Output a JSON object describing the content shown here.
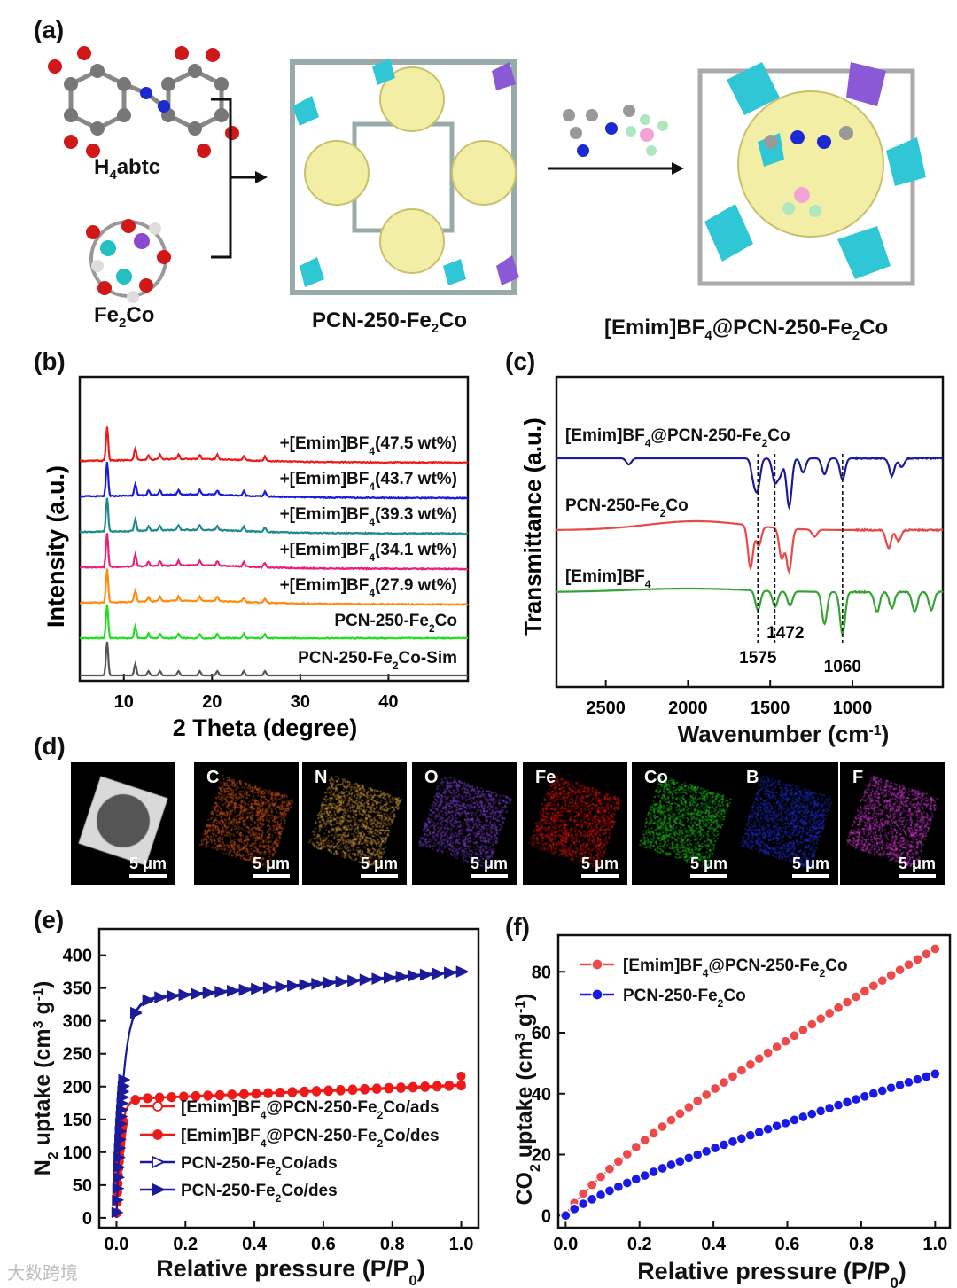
{
  "panel_a": {
    "letter": "(a)",
    "labels": {
      "linker": "H",
      "linker_sub": "4",
      "linker_tail": "abtc",
      "cluster": "Fe",
      "cluster_sub": "2",
      "cluster_tail": "Co",
      "mof": "PCN-250-Fe",
      "mof_sub": "2",
      "mof_tail": "Co",
      "composite": "[Emim]BF",
      "composite_sub": "4",
      "composite_tail": "@PCN-250-Fe",
      "composite_sub2": "2",
      "composite_tail2": "Co"
    }
  },
  "panel_d": {
    "letter": "(d)",
    "scale_label": "5 μm",
    "elements": [
      "",
      "C",
      "N",
      "O",
      "Fe",
      "Co",
      "B",
      "F"
    ],
    "colors": [
      "#9a9a9a",
      "#d2551f",
      "#d59a3c",
      "#7a3ec9",
      "#e01010",
      "#1fc21f",
      "#1f2fd6",
      "#d23ad2"
    ]
  },
  "chart_data": [
    {
      "panel": "(b)",
      "type": "line",
      "xlabel": "2 Theta (degree)",
      "ylabel": "Intensity (a.u.)",
      "xlim": [
        5,
        49
      ],
      "xticks": [
        10,
        20,
        30,
        40
      ],
      "peaks": [
        8.1,
        11.3,
        12.8,
        14.1,
        16.2,
        18.6,
        20.6,
        23.6,
        26.0
      ],
      "series": [
        {
          "name": "PCN-250-Fe2Co-Sim",
          "label": "PCN-250-Fe",
          "sub": "2",
          "tail": "Co-Sim",
          "color": "#555555",
          "offset": 0
        },
        {
          "name": "PCN-250-Fe2Co",
          "label": "PCN-250-Fe",
          "sub": "2",
          "tail": "Co",
          "color": "#22dd22",
          "offset": 1
        },
        {
          "name": "+[Emim]BF4(27.9 wt%)",
          "label": "+[Emim]BF",
          "sub": "4",
          "tail": "(27.9 wt%)",
          "color": "#ff8c10",
          "offset": 2
        },
        {
          "name": "+[Emim]BF4(34.1 wt%)",
          "label": "+[Emim]BF",
          "sub": "4",
          "tail": "(34.1 wt%)",
          "color": "#e8207a",
          "offset": 3
        },
        {
          "name": "+[Emim]BF4(39.3 wt%)",
          "label": "+[Emim]BF",
          "sub": "4",
          "tail": "(39.3 wt%)",
          "color": "#1f8a8a",
          "offset": 4
        },
        {
          "name": "+[Emim]BF4(43.7 wt%)",
          "label": "+[Emim]BF",
          "sub": "4",
          "tail": "(43.7 wt%)",
          "color": "#1a1ae0",
          "offset": 5
        },
        {
          "name": "+[Emim]BF4(47.5 wt%)",
          "label": "+[Emim]BF",
          "sub": "4",
          "tail": "(47.5 wt%)",
          "color": "#ee1a1a",
          "offset": 6
        }
      ]
    },
    {
      "panel": "(c)",
      "type": "line",
      "xlabel": "Wavenumber (cm",
      "xlabel_sup": "-1",
      "xlabel_tail": ")",
      "ylabel": "Transmittance (a.u.)",
      "xlim": [
        2800,
        450
      ],
      "xticks": [
        2500,
        2000,
        1500,
        1000
      ],
      "markers": [
        1575,
        1472,
        1060
      ],
      "series": [
        {
          "name": "[Emim]BF4@PCN-250-Fe2Co",
          "label": "[Emim]BF",
          "sub": "4",
          "tail": "@PCN-250-Fe",
          "sub2": "2",
          "tail2": "Co",
          "color": "#1a1a9a",
          "bands": [
            [
              2360,
              7
            ],
            [
              1600,
              22
            ],
            [
              1575,
              30
            ],
            [
              1472,
              26
            ],
            [
              1440,
              18
            ],
            [
              1385,
              55
            ],
            [
              1300,
              16
            ],
            [
              1170,
              18
            ],
            [
              1060,
              24
            ],
            [
              760,
              20
            ],
            [
              700,
              10
            ]
          ]
        },
        {
          "name": "PCN-250-Fe2Co",
          "label": "PCN-250-Fe",
          "sub": "2",
          "tail": "Co",
          "color": "#e84848",
          "bands": [
            [
              1620,
              48
            ],
            [
              1570,
              22
            ],
            [
              1430,
              34
            ],
            [
              1385,
              48
            ],
            [
              1230,
              8
            ],
            [
              780,
              20
            ],
            [
              720,
              12
            ]
          ]
        },
        {
          "name": "[Emim]BF4",
          "label": "[Emim]BF",
          "sub": "4",
          "tail": "",
          "color": "#36a336",
          "bands": [
            [
              1575,
              22
            ],
            [
              1470,
              18
            ],
            [
              1380,
              16
            ],
            [
              1170,
              36
            ],
            [
              1060,
              48
            ],
            [
              850,
              22
            ],
            [
              760,
              18
            ],
            [
              620,
              22
            ],
            [
              520,
              20
            ]
          ]
        }
      ]
    },
    {
      "panel": "(e)",
      "type": "line",
      "xlabel": "Relative pressure (P/P",
      "xlabel_sub": "0",
      "xlabel_tail": ")",
      "ylabel": "N",
      "ylabel_sub": "2",
      "ylabel_tail": " uptake (cm",
      "ylabel_sup": "3",
      "ylabel_tail2": " g",
      "ylabel_sup2": "-1",
      "ylabel_tail3": ")",
      "xlim": [
        -0.05,
        1.05
      ],
      "ylim": [
        -15,
        440
      ],
      "xticks": [
        0.0,
        0.2,
        0.4,
        0.6,
        0.8,
        1.0
      ],
      "yticks": [
        0,
        50,
        100,
        150,
        200,
        250,
        300,
        350,
        400
      ],
      "series": [
        {
          "name": "[Emim]BF4@PCN-250-Fe2Co/ads",
          "label": "[Emim]BF",
          "sub": "4",
          "tail": "@PCN-250-Fe",
          "sub2": "2",
          "tail2": "Co/ads",
          "color": "#ee1a1a",
          "marker": "circle-open",
          "plateau": 180,
          "end": 201,
          "knee": 0.012
        },
        {
          "name": "[Emim]BF4@PCN-250-Fe2Co/des",
          "label": "[Emim]BF",
          "sub": "4",
          "tail": "@PCN-250-Fe",
          "sub2": "2",
          "tail2": "Co/des",
          "color": "#ee1a1a",
          "marker": "circle-filled",
          "plateau": 181,
          "end": 203,
          "last": 216,
          "knee": 0.012
        },
        {
          "name": "PCN-250-Fe2Co/ads",
          "label": "PCN-250-Fe",
          "sub": "2",
          "tail": "Co/ads",
          "color": "#1a1a9a",
          "marker": "tri-open",
          "plateau": 330,
          "end": 374,
          "knee": 0.02
        },
        {
          "name": "PCN-250-Fe2Co/des",
          "label": "PCN-250-Fe",
          "sub": "2",
          "tail": "Co/des",
          "color": "#1a1a9a",
          "marker": "tri-filled",
          "plateau": 332,
          "end": 376,
          "knee": 0.02
        }
      ]
    },
    {
      "panel": "(f)",
      "type": "line",
      "xlabel": "Relative pressure (P/P",
      "xlabel_sub": "0",
      "xlabel_tail": ")",
      "ylabel": "CO",
      "ylabel_sub": "2",
      "ylabel_tail": " uptake (cm",
      "ylabel_sup": "3",
      "ylabel_tail2": " g",
      "ylabel_sup2": "-1",
      "ylabel_tail3": ")",
      "xlim": [
        -0.02,
        1.04
      ],
      "ylim": [
        -4,
        92
      ],
      "xticks": [
        0.0,
        0.2,
        0.4,
        0.6,
        0.8,
        1.0
      ],
      "yticks": [
        0,
        20,
        40,
        60,
        80
      ],
      "series": [
        {
          "name": "[Emim]BF4@PCN-250-Fe2Co",
          "label": "[Emim]BF",
          "sub": "4",
          "tail": "@PCN-250-Fe",
          "sub2": "2",
          "tail2": "Co",
          "color": "#ee4a4a",
          "end": 87.5,
          "curv": 0.82
        },
        {
          "name": "PCN-250-Fe2Co",
          "label": "PCN-250-Fe",
          "sub": "2",
          "tail": "Co",
          "color": "#1a1ae8",
          "end": 46.5,
          "curv": 0.82
        }
      ]
    }
  ],
  "watermark": "大数跨境"
}
